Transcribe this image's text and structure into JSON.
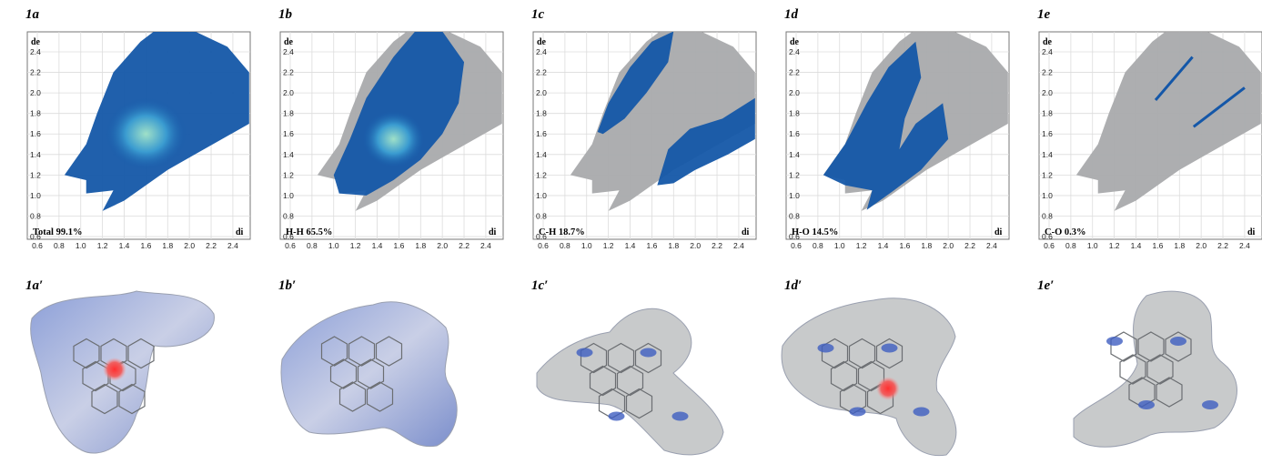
{
  "panels": [
    {
      "label": "1a",
      "caption": "Total 99.1%",
      "surface_label": "1a′"
    },
    {
      "label": "1b",
      "caption": "H-H 65.5%",
      "surface_label": "1b′"
    },
    {
      "label": "1c",
      "caption": "C-H 18.7%",
      "surface_label": "1c′"
    },
    {
      "label": "1d",
      "caption": "H-O 14.5%",
      "surface_label": "1d′"
    },
    {
      "label": "1e",
      "caption": "C-O 0.3%",
      "surface_label": "1e′"
    }
  ],
  "axis": {
    "x_label": "di",
    "y_label": "de",
    "xticks": [
      "0.6",
      "0.8",
      "1.0",
      "1.2",
      "1.4",
      "1.6",
      "1.8",
      "2.0",
      "2.2",
      "2.4"
    ],
    "yticks": [
      "0.6",
      "0.8",
      "1.0",
      "1.2",
      "1.4",
      "1.6",
      "1.8",
      "2.0",
      "2.2",
      "2.4"
    ]
  }
}
